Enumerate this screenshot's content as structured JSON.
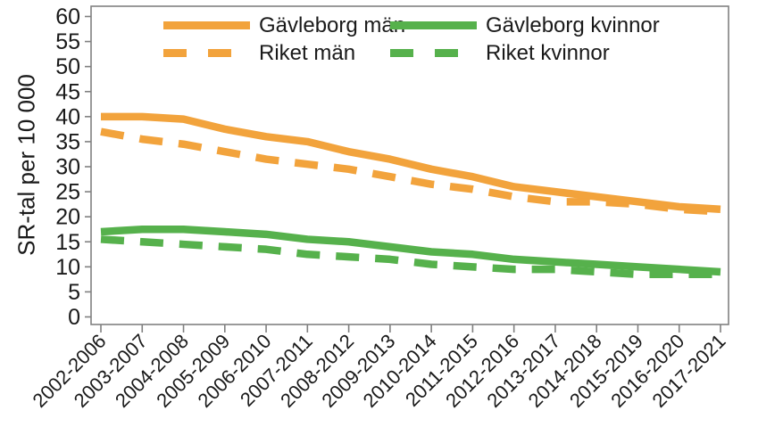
{
  "chart_data": {
    "type": "line",
    "title": "",
    "xlabel": "",
    "ylabel": "SR-tal per 10 000",
    "ylim": [
      0,
      60
    ],
    "ytick_step": 5,
    "grid": false,
    "legend_position": "top-inside, two columns",
    "axis_color": "#808080",
    "text_color": "#1a1a1a",
    "colors": {
      "orange": "#F2A33C",
      "green": "#56B14C"
    },
    "categories": [
      "2002-2006",
      "2003-2007",
      "2004-2008",
      "2005-2009",
      "2006-2010",
      "2007-2011",
      "2008-2012",
      "2009-2013",
      "2010-2014",
      "2011-2015",
      "2012-2016",
      "2013-2017",
      "2014-2018",
      "2015-2019",
      "2016-2020",
      "2017-2021"
    ],
    "series": [
      {
        "name": "Gävleborg män",
        "color_key": "orange",
        "line_style": "solid",
        "values": [
          40,
          40,
          39.5,
          37.5,
          36,
          35,
          33,
          31.5,
          29.5,
          28,
          26,
          25,
          24,
          23,
          22,
          21.5
        ]
      },
      {
        "name": "Riket män",
        "color_key": "orange",
        "line_style": "dashed",
        "values": [
          37,
          35.5,
          34.5,
          33,
          31.5,
          30.5,
          29.5,
          28,
          26.5,
          25.5,
          24,
          23,
          23,
          22.5,
          21.5,
          21
        ]
      },
      {
        "name": "Gävleborg kvinnor",
        "color_key": "green",
        "line_style": "solid",
        "values": [
          17,
          17.5,
          17.5,
          17,
          16.5,
          15.5,
          15,
          14,
          13,
          12.5,
          11.5,
          11,
          10.5,
          10,
          9.5,
          9
        ]
      },
      {
        "name": "Riket kvinnor",
        "color_key": "green",
        "line_style": "dashed",
        "values": [
          15.5,
          15,
          14.5,
          14,
          13.5,
          12.5,
          12,
          11.5,
          10.5,
          10,
          9.5,
          9.5,
          9,
          8.5,
          8.5,
          8.5
        ]
      }
    ]
  }
}
